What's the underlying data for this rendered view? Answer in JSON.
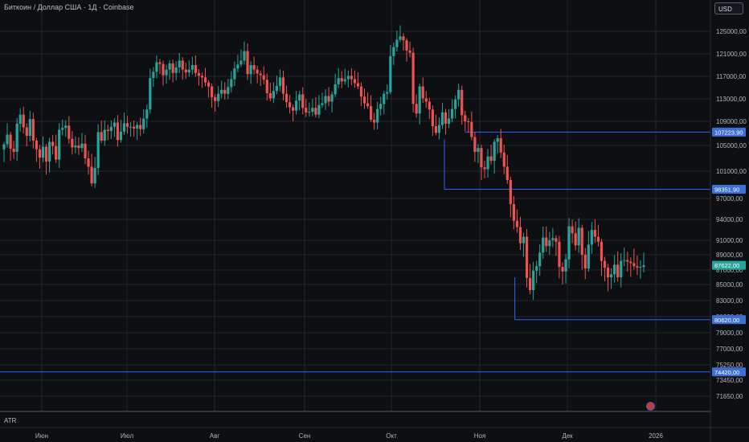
{
  "header": {
    "title": "Биткоин / Доллар США · 1Д · Coinbase",
    "currency_button": "USD"
  },
  "indicator": {
    "label": "ATR"
  },
  "colors": {
    "background": "#0e0f13",
    "grid": "#22252c",
    "up": "#26a69a",
    "down": "#ef5350",
    "level": "#2962ff",
    "level_label": "#3d6fd6",
    "last_price_label": "#26a69a"
  },
  "chart_data": {
    "type": "candlestick",
    "price_axis_labels": [
      "125000,00",
      "121000,00",
      "117000,00",
      "113000,00",
      "109000,00",
      "105000,00",
      "101000,00",
      "97000,00",
      "94000,00",
      "91000,00",
      "89000,00",
      "87000,00",
      "85000,00",
      "83000,00",
      "81000,00",
      "79000,00",
      "77000,00",
      "75250,00",
      "73450,00",
      "71650,00"
    ],
    "price_axis_values": [
      125000,
      121000,
      117000,
      113000,
      109000,
      105000,
      101000,
      97000,
      94000,
      91000,
      89000,
      87000,
      85000,
      83000,
      81000,
      79000,
      77000,
      75250,
      73450,
      71650
    ],
    "time_axis_labels": [
      "Июн",
      "Июл",
      "Авг",
      "Сен",
      "Окт",
      "Ноя",
      "Дек",
      "2026"
    ],
    "level_labels": [
      "107223,90",
      "98351,90",
      "87622,00",
      "80620,00",
      "74420,00"
    ],
    "levels": [
      {
        "price": 107223.9,
        "kind": "zone-top",
        "from_month": 10.83
      },
      {
        "price": 98351.9,
        "kind": "zone-bottom",
        "from_month": 10.6
      },
      {
        "price": 80620.0,
        "kind": "support",
        "from_month": 11.4
      },
      {
        "price": 74420.0,
        "kind": "support-full",
        "from_month": 5.0
      }
    ],
    "last_price": 87622.0,
    "closes": [
      105200,
      106800,
      104500,
      104000,
      108600,
      110200,
      108000,
      106600,
      109400,
      105800,
      104400,
      103100,
      104800,
      102500,
      105600,
      104900,
      102800,
      107600,
      107900,
      108300,
      106100,
      104700,
      105000,
      104600,
      105300,
      103000,
      101700,
      99200,
      101500,
      107200,
      105800,
      107600,
      107400,
      108100,
      108800,
      105900,
      107300,
      108700,
      108100,
      108100,
      107800,
      108400,
      107700,
      109500,
      111100,
      116700,
      117800,
      119500,
      119200,
      117200,
      118200,
      119300,
      117600,
      118600,
      119800,
      118200,
      117700,
      118200,
      119000,
      117600,
      117100,
      116800,
      115900,
      115200,
      113300,
      112600,
      113900,
      114600,
      113900,
      115100,
      116500,
      118400,
      119100,
      119800,
      121500,
      117400,
      119000,
      118200,
      117500,
      117200,
      116400,
      114000,
      113100,
      114400,
      115300,
      116800,
      113900,
      112400,
      111500,
      110900,
      112700,
      113800,
      111400,
      110600,
      110700,
      111400,
      110200,
      111900,
      112200,
      113500,
      112500,
      113800,
      115600,
      116700,
      116100,
      116500,
      117100,
      116500,
      115800,
      115200,
      113400,
      112200,
      111700,
      109300,
      108800,
      111200,
      112100,
      113900,
      114200,
      120600,
      122200,
      123500,
      124100,
      123400,
      121600,
      121200,
      112100,
      110400,
      115200,
      113100,
      112500,
      111100,
      108200,
      107100,
      108400,
      110600,
      108600,
      109500,
      111200,
      112900,
      114600,
      110100,
      109000,
      108900,
      106400,
      104000,
      104600,
      101600,
      101300,
      103300,
      102600,
      105600,
      106200,
      103900,
      101700,
      99700,
      96200,
      93800,
      92900,
      90600,
      91500,
      85900,
      84300,
      86900,
      87500,
      89300,
      91400,
      90200,
      91000,
      91300,
      90800,
      87400,
      86800,
      88400,
      93000,
      92000,
      90300,
      92800,
      89000,
      87200,
      90400,
      92500,
      91500,
      90800,
      88200,
      87300,
      86000,
      86400,
      87700,
      86000,
      88200,
      88300,
      88100,
      87900,
      87500,
      87300,
      87400,
      87622
    ]
  }
}
